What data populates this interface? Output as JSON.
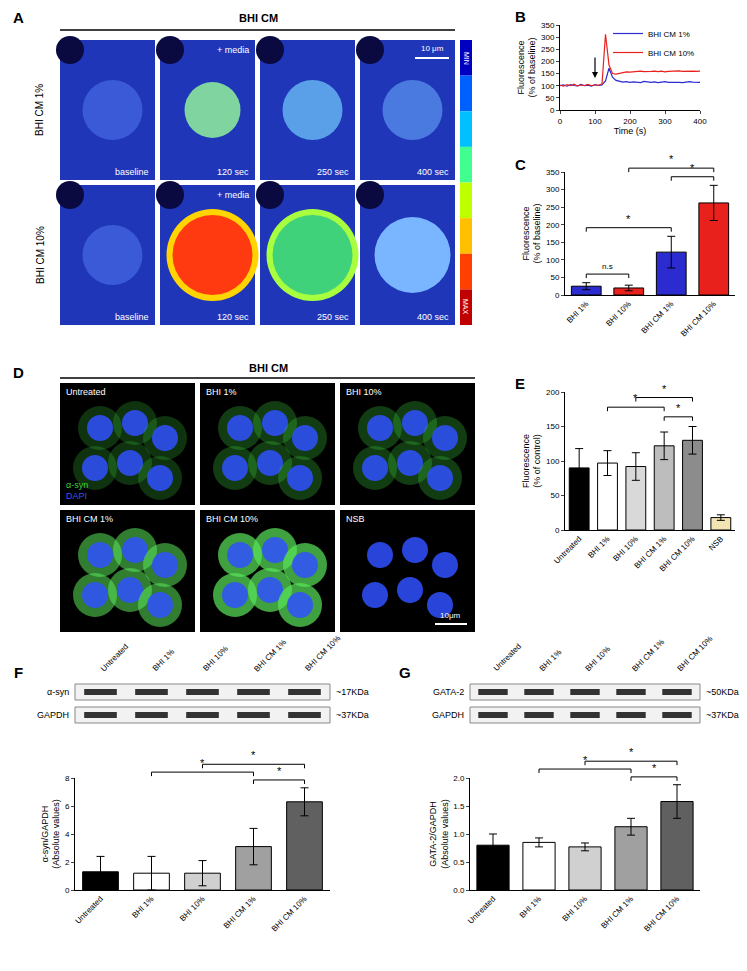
{
  "panels": {
    "A": {
      "panel": "A",
      "title": "BHI CM",
      "rows": [
        "BHI CM 1%",
        "BHI CM 10%"
      ],
      "frames": [
        "baseline",
        "120 sec",
        "250 sec",
        "400 sec"
      ],
      "stimulus": "+ media",
      "scale_bar": "10 μm",
      "colorbar": [
        "MIN",
        "MAX"
      ]
    },
    "D": {
      "panel": "D",
      "title": "BHI CM",
      "cells": [
        "Untreated",
        "BHI 1%",
        "BHI 10%",
        "BHI CM 1%",
        "BHI CM 10%",
        "NSB"
      ],
      "stains": [
        {
          "name": "α-syn",
          "color": "#3fd23f"
        },
        {
          "name": "DAPI",
          "color": "#3050ff"
        }
      ],
      "scale_bar": "10μm"
    },
    "F_blot": {
      "lanes": [
        "Untreated",
        "BHI 1%",
        "BHI 10%",
        "BHI CM 1%",
        "BHI CM 10%"
      ],
      "rows": [
        {
          "protein": "α-syn",
          "size": "~17KDa"
        },
        {
          "protein": "GAPDH",
          "size": "~37KDa"
        }
      ]
    },
    "G_blot": {
      "lanes": [
        "Untreated",
        "BHI 1%",
        "BHI 10%",
        "BHI CM 1%",
        "BHI CM 10%"
      ],
      "rows": [
        {
          "protein": "GATA-2",
          "size": "~50KDa"
        },
        {
          "protein": "GAPDH",
          "size": "~37KDa"
        }
      ]
    }
  },
  "chart_data": [
    {
      "panel": "B",
      "type": "line",
      "x": [
        0,
        10,
        20,
        30,
        40,
        50,
        60,
        70,
        80,
        90,
        100,
        110,
        120,
        130,
        140,
        150,
        160,
        170,
        180,
        190,
        200,
        210,
        220,
        230,
        240,
        250,
        260,
        270,
        280,
        290,
        300,
        310,
        320,
        330,
        340,
        350,
        360,
        370,
        380,
        390,
        400
      ],
      "series": [
        {
          "name": "BHI CM 1%",
          "color": "#2b2bd0",
          "values": [
            100,
            103,
            98,
            104,
            101,
            99,
            105,
            100,
            102,
            98,
            104,
            101,
            103,
            120,
            172,
            135,
            122,
            118,
            115,
            117,
            114,
            116,
            115,
            113,
            118,
            115,
            114,
            116,
            113,
            115,
            117,
            114,
            115,
            116,
            114,
            113,
            115,
            117,
            115,
            116,
            114
          ]
        },
        {
          "name": "BHI CM 10%",
          "color": "#e8211d",
          "values": [
            102,
            98,
            104,
            100,
            106,
            99,
            103,
            101,
            105,
            100,
            104,
            102,
            108,
            312,
            185,
            150,
            148,
            152,
            155,
            157,
            156,
            158,
            157,
            160,
            158,
            157,
            159,
            160,
            158,
            160,
            157,
            159,
            160,
            158,
            161,
            159,
            160,
            158,
            160,
            159,
            160
          ]
        }
      ],
      "x_label": "Time (s)",
      "y_label": "Fluorescence\n(% of baseline)",
      "xlim": [
        0,
        400
      ],
      "xticks": [
        0,
        100,
        200,
        300,
        400
      ],
      "ylim": [
        0,
        350
      ],
      "yticks": [
        0,
        50,
        100,
        150,
        200,
        250,
        300,
        350
      ],
      "legend": "upper right",
      "arrow_x": 100
    },
    {
      "panel": "C",
      "type": "bar",
      "categories": [
        "BHI 1%",
        "BHI 10%",
        "BHI CM 1%",
        "BHI CM 10%"
      ],
      "values": [
        25,
        20,
        122,
        262
      ],
      "errors": [
        10,
        8,
        45,
        50
      ],
      "colors": [
        "#2b2bd0",
        "#e8211d",
        "#2b2bd0",
        "#e8211d"
      ],
      "y_label": "Fluorescence\n(% of baseline)",
      "ylim": [
        0,
        350
      ],
      "yticks": [
        0,
        50,
        100,
        150,
        200,
        250,
        300,
        350
      ],
      "significance": [
        {
          "from": "BHI 1%",
          "to": "BHI 10%",
          "text": "n.s"
        },
        {
          "from": "BHI 1%",
          "to": "BHI CM 1%",
          "text": "*"
        },
        {
          "from": "BHI CM 1%",
          "to": "BHI CM 10%",
          "text": "*"
        },
        {
          "from": "BHI 10%",
          "to": "BHI CM 10%",
          "text": "*"
        }
      ]
    },
    {
      "panel": "E",
      "type": "bar",
      "categories": [
        "Untreated",
        "BHI 1%",
        "BHI 10%",
        "BHI CM 1%",
        "BHI CM 10%",
        "NSB"
      ],
      "values": [
        90,
        97,
        92,
        122,
        130,
        18
      ],
      "errors": [
        28,
        18,
        20,
        20,
        20,
        4
      ],
      "colors": [
        "#000000",
        "#ffffff",
        "#d9d9d9",
        "#bdbdbd",
        "#8c8c8c",
        "#f3e4b4"
      ],
      "y_label": "Fluorescence\n(% of control)",
      "ylim": [
        0,
        200
      ],
      "yticks": [
        0,
        50,
        100,
        150,
        200
      ],
      "significance": [
        {
          "from": "BHI CM 1%",
          "to": "BHI CM 10%",
          "text": "*"
        },
        {
          "from": "BHI 1%",
          "to": "BHI CM 1%",
          "text": "*"
        },
        {
          "from": "BHI 10%",
          "to": "BHI CM 10%",
          "text": "*"
        }
      ]
    },
    {
      "panel": "F",
      "type": "bar",
      "categories": [
        "Untreated",
        "BHI 1%",
        "BHI 10%",
        "BHI CM 1%",
        "BHI CM 10%"
      ],
      "values": [
        1.3,
        1.2,
        1.2,
        3.1,
        6.3
      ],
      "errors": [
        1.1,
        1.2,
        0.9,
        1.3,
        1.0
      ],
      "colors": [
        "#000000",
        "#ffffff",
        "#d0d0d0",
        "#a0a0a0",
        "#606060"
      ],
      "y_label": "α-syn/GAPDH\n(Absolute values)",
      "ylim": [
        0,
        8
      ],
      "yticks": [
        0,
        2,
        4,
        6,
        8
      ],
      "significance": [
        {
          "from": "BHI CM 1%",
          "to": "BHI CM 10%",
          "text": "*"
        },
        {
          "from": "BHI 1%",
          "to": "BHI CM 1%",
          "text": "*"
        },
        {
          "from": "BHI 10%",
          "to": "BHI CM 10%",
          "text": "*"
        }
      ]
    },
    {
      "panel": "G",
      "type": "bar",
      "categories": [
        "Untreated",
        "BHI 1%",
        "BHI 10%",
        "BHI CM 1%",
        "BHI CM 10%"
      ],
      "values": [
        0.8,
        0.85,
        0.77,
        1.13,
        1.58
      ],
      "errors": [
        0.2,
        0.08,
        0.07,
        0.15,
        0.3
      ],
      "colors": [
        "#000000",
        "#ffffff",
        "#d0d0d0",
        "#a0a0a0",
        "#606060"
      ],
      "y_label": "GATA-2/GAPDH\n(Absolute values)",
      "ylim": [
        0,
        2
      ],
      "yticks": [
        {
          "value": 0,
          "label": "0.0"
        },
        0.5,
        {
          "value": 1,
          "label": "1.0"
        },
        1.5,
        {
          "value": 2,
          "label": "2.0"
        }
      ],
      "significance": [
        {
          "from": "BHI CM 1%",
          "to": "BHI CM 10%",
          "text": "*"
        },
        {
          "from": "BHI 1%",
          "to": "BHI CM 1%",
          "text": "*"
        },
        {
          "from": "BHI 10%",
          "to": "BHI CM 10%",
          "text": "*"
        }
      ]
    }
  ]
}
